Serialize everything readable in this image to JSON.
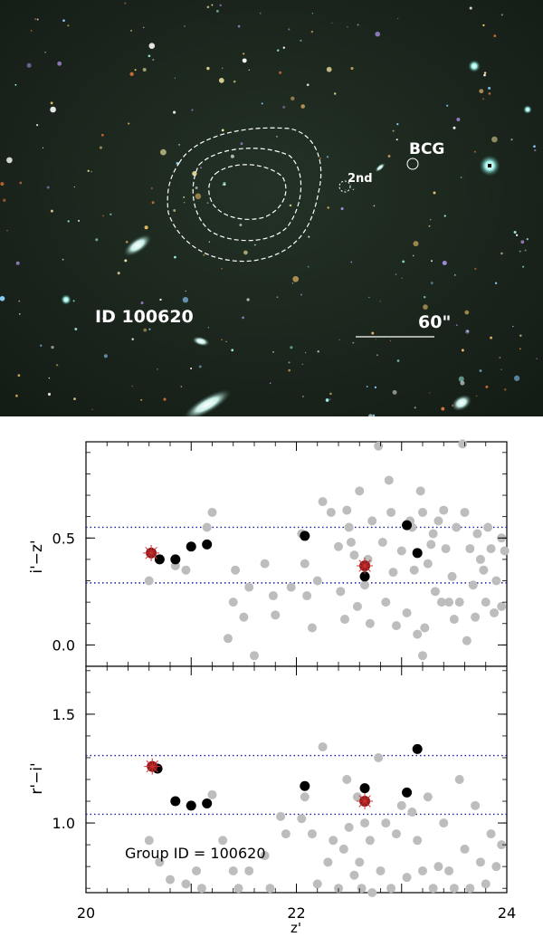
{
  "image": {
    "field_id_label": "ID 100620",
    "bcg_label": "BCG",
    "second_label": "2nd",
    "scale_label": "60\""
  },
  "chart_data": [
    {
      "type": "scatter",
      "xlabel": "z'",
      "ylabel": "i'−z'",
      "xlim": [
        20,
        24
      ],
      "ylim": [
        -0.1,
        0.95
      ],
      "yticks": [
        "0.0",
        "0.5"
      ],
      "ytick_values": [
        0.0,
        0.5
      ],
      "hlines": [
        0.55,
        0.29
      ],
      "hline_color": "#1a1aaa",
      "colors": {
        "background": "#bdbdbd",
        "members": "#000000",
        "highlight": "#8b1a1a",
        "cross": "#d03030"
      },
      "series": [
        {
          "role": "background",
          "points": [
            [
              20.6,
              0.3
            ],
            [
              20.7,
              0.4
            ],
            [
              20.85,
              0.37
            ],
            [
              20.95,
              0.35
            ],
            [
              21.15,
              0.55
            ],
            [
              21.2,
              0.62
            ],
            [
              21.35,
              0.03
            ],
            [
              21.4,
              0.2
            ],
            [
              21.42,
              0.35
            ],
            [
              21.5,
              0.13
            ],
            [
              21.55,
              0.27
            ],
            [
              21.6,
              -0.05
            ],
            [
              21.7,
              0.38
            ],
            [
              21.78,
              0.23
            ],
            [
              21.8,
              0.14
            ],
            [
              21.95,
              0.27
            ],
            [
              22.05,
              0.52
            ],
            [
              22.08,
              0.38
            ],
            [
              22.1,
              0.23
            ],
            [
              22.15,
              0.08
            ],
            [
              22.2,
              0.3
            ],
            [
              22.25,
              0.67
            ],
            [
              22.33,
              0.62
            ],
            [
              22.4,
              0.46
            ],
            [
              22.42,
              0.25
            ],
            [
              22.46,
              0.12
            ],
            [
              22.48,
              0.63
            ],
            [
              22.5,
              0.55
            ],
            [
              22.52,
              0.48
            ],
            [
              22.55,
              0.42
            ],
            [
              22.58,
              0.18
            ],
            [
              22.6,
              0.72
            ],
            [
              22.65,
              0.28
            ],
            [
              22.68,
              0.4
            ],
            [
              22.7,
              0.1
            ],
            [
              22.72,
              0.58
            ],
            [
              22.78,
              0.93
            ],
            [
              22.82,
              0.48
            ],
            [
              22.85,
              0.2
            ],
            [
              22.88,
              0.77
            ],
            [
              22.9,
              0.62
            ],
            [
              22.92,
              0.34
            ],
            [
              22.95,
              0.09
            ],
            [
              23.0,
              0.44
            ],
            [
              23.05,
              0.15
            ],
            [
              23.08,
              0.58
            ],
            [
              23.1,
              0.55
            ],
            [
              23.12,
              0.35
            ],
            [
              23.15,
              0.05
            ],
            [
              23.18,
              0.72
            ],
            [
              23.2,
              -0.05
            ],
            [
              23.2,
              0.62
            ],
            [
              23.22,
              0.08
            ],
            [
              23.25,
              0.38
            ],
            [
              23.28,
              0.47
            ],
            [
              23.3,
              0.52
            ],
            [
              23.32,
              0.25
            ],
            [
              23.35,
              0.58
            ],
            [
              23.38,
              0.2
            ],
            [
              23.4,
              0.63
            ],
            [
              23.42,
              0.45
            ],
            [
              23.45,
              0.2
            ],
            [
              23.48,
              0.32
            ],
            [
              23.5,
              0.12
            ],
            [
              23.52,
              0.55
            ],
            [
              23.55,
              0.2
            ],
            [
              23.58,
              0.94
            ],
            [
              23.6,
              0.62
            ],
            [
              23.62,
              0.02
            ],
            [
              23.65,
              0.45
            ],
            [
              23.68,
              0.28
            ],
            [
              23.7,
              0.13
            ],
            [
              23.72,
              0.52
            ],
            [
              23.75,
              0.4
            ],
            [
              23.78,
              0.35
            ],
            [
              23.8,
              0.2
            ],
            [
              23.82,
              0.55
            ],
            [
              23.85,
              0.45
            ],
            [
              23.88,
              0.15
            ],
            [
              23.9,
              0.3
            ],
            [
              23.95,
              0.5
            ],
            [
              23.95,
              0.18
            ],
            [
              23.98,
              0.44
            ]
          ]
        },
        {
          "role": "members",
          "points": [
            [
              20.7,
              0.4
            ],
            [
              20.85,
              0.4
            ],
            [
              21.0,
              0.46
            ],
            [
              21.15,
              0.47
            ],
            [
              22.08,
              0.51
            ],
            [
              22.65,
              0.32
            ],
            [
              23.05,
              0.56
            ],
            [
              23.15,
              0.43
            ]
          ]
        },
        {
          "role": "highlighted",
          "points": [
            [
              20.62,
              0.43
            ],
            [
              22.65,
              0.37
            ]
          ]
        }
      ]
    },
    {
      "type": "scatter",
      "xlabel": "z'",
      "ylabel": "r'−i'",
      "xlim": [
        20,
        24
      ],
      "ylim": [
        0.68,
        1.72
      ],
      "yticks": [
        "1.0",
        "1.5"
      ],
      "ytick_values": [
        1.0,
        1.5
      ],
      "xticks": [
        "20",
        "22",
        "24"
      ],
      "xtick_values": [
        20,
        22,
        24
      ],
      "hlines": [
        1.31,
        1.04
      ],
      "hline_color": "#1a1aaa",
      "annotation": "Group ID = 100620",
      "colors": {
        "background": "#bdbdbd",
        "members": "#000000",
        "highlight": "#8b1a1a",
        "cross": "#d03030"
      },
      "series": [
        {
          "role": "background",
          "points": [
            [
              20.6,
              0.92
            ],
            [
              20.7,
              0.82
            ],
            [
              20.8,
              0.74
            ],
            [
              20.95,
              0.72
            ],
            [
              21.05,
              0.78
            ],
            [
              21.1,
              0.7
            ],
            [
              21.2,
              1.13
            ],
            [
              21.3,
              0.92
            ],
            [
              21.4,
              0.78
            ],
            [
              21.45,
              0.7
            ],
            [
              21.55,
              0.78
            ],
            [
              21.7,
              0.85
            ],
            [
              21.75,
              0.7
            ],
            [
              21.85,
              1.03
            ],
            [
              21.9,
              0.95
            ],
            [
              22.05,
              1.02
            ],
            [
              22.08,
              1.12
            ],
            [
              22.15,
              0.95
            ],
            [
              22.2,
              0.72
            ],
            [
              22.25,
              1.35
            ],
            [
              22.3,
              0.82
            ],
            [
              22.35,
              0.92
            ],
            [
              22.4,
              0.7
            ],
            [
              22.45,
              0.88
            ],
            [
              22.48,
              1.2
            ],
            [
              22.5,
              0.98
            ],
            [
              22.55,
              0.76
            ],
            [
              22.58,
              1.12
            ],
            [
              22.6,
              0.82
            ],
            [
              22.62,
              0.7
            ],
            [
              22.65,
              1.0
            ],
            [
              22.7,
              0.92
            ],
            [
              22.72,
              0.68
            ],
            [
              22.78,
              1.3
            ],
            [
              22.8,
              0.78
            ],
            [
              22.85,
              1.0
            ],
            [
              22.9,
              0.7
            ],
            [
              22.95,
              0.95
            ],
            [
              23.0,
              1.08
            ],
            [
              23.05,
              0.75
            ],
            [
              23.1,
              1.05
            ],
            [
              23.15,
              0.92
            ],
            [
              23.2,
              0.78
            ],
            [
              23.25,
              1.12
            ],
            [
              23.3,
              0.7
            ],
            [
              23.35,
              0.8
            ],
            [
              23.4,
              1.0
            ],
            [
              23.45,
              0.78
            ],
            [
              23.5,
              0.7
            ],
            [
              23.55,
              1.2
            ],
            [
              23.6,
              0.88
            ],
            [
              23.65,
              0.7
            ],
            [
              23.7,
              1.08
            ],
            [
              23.75,
              0.82
            ],
            [
              23.8,
              0.72
            ],
            [
              23.85,
              0.95
            ],
            [
              23.9,
              0.8
            ],
            [
              23.95,
              0.9
            ]
          ]
        },
        {
          "role": "members",
          "points": [
            [
              20.68,
              1.25
            ],
            [
              20.85,
              1.1
            ],
            [
              21.0,
              1.08
            ],
            [
              21.15,
              1.09
            ],
            [
              22.08,
              1.17
            ],
            [
              22.65,
              1.16
            ],
            [
              23.05,
              1.14
            ],
            [
              23.15,
              1.34
            ]
          ]
        },
        {
          "role": "highlighted",
          "points": [
            [
              20.63,
              1.26
            ],
            [
              22.65,
              1.1
            ]
          ]
        }
      ]
    }
  ]
}
